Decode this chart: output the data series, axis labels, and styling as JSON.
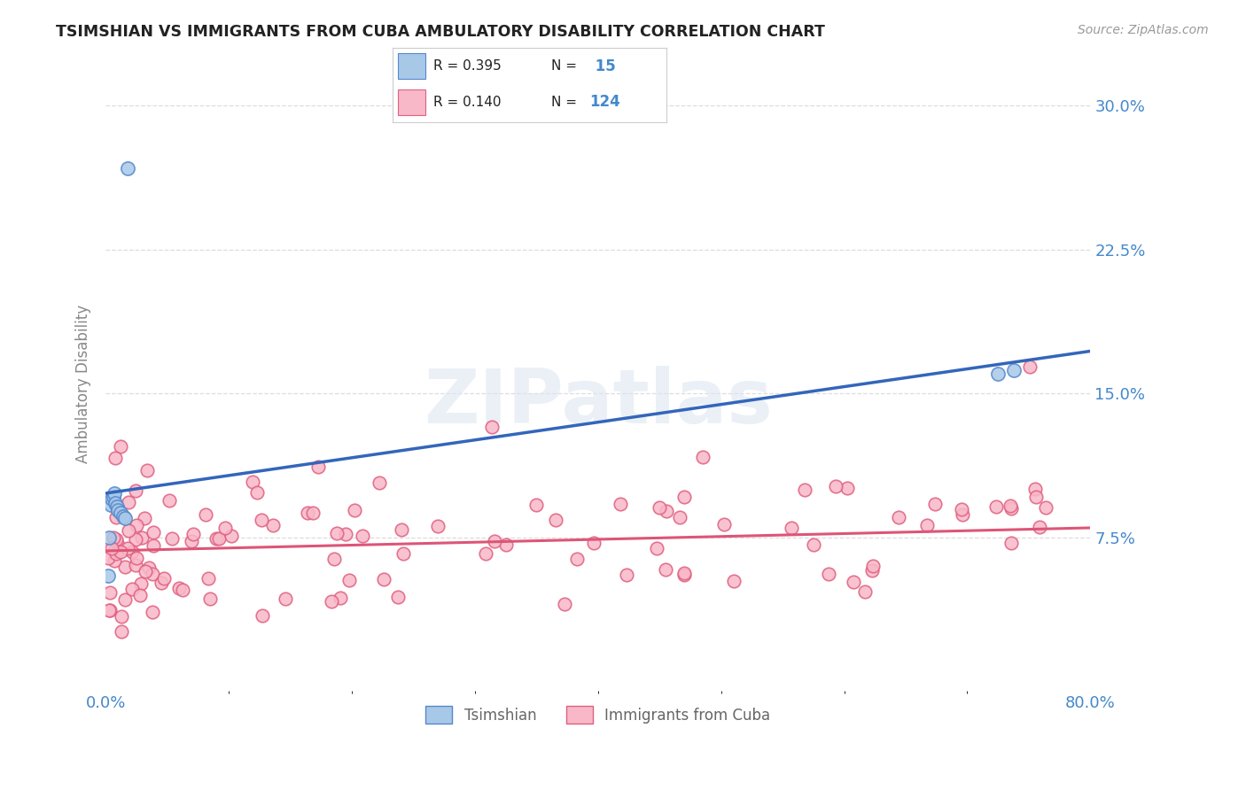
{
  "title": "TSIMSHIAN VS IMMIGRANTS FROM CUBA AMBULATORY DISABILITY CORRELATION CHART",
  "source": "Source: ZipAtlas.com",
  "ylabel": "Ambulatory Disability",
  "xmin": 0.0,
  "xmax": 0.8,
  "ymin": -0.005,
  "ymax": 0.315,
  "blue_R": "0.395",
  "blue_N": "15",
  "pink_R": "0.140",
  "pink_N": "124",
  "blue_scatter_color": "#a8c8e8",
  "blue_edge_color": "#5588cc",
  "pink_scatter_color": "#f8b8c8",
  "pink_edge_color": "#e06080",
  "blue_line_color": "#3366bb",
  "pink_line_color": "#dd5577",
  "legend_label_blue": "Tsimshian",
  "legend_label_pink": "Immigrants from Cuba",
  "blue_x": [
    0.002,
    0.003,
    0.004,
    0.005,
    0.006,
    0.007,
    0.008,
    0.009,
    0.01,
    0.012,
    0.014,
    0.016,
    0.018,
    0.725,
    0.738
  ],
  "blue_y": [
    0.055,
    0.075,
    0.092,
    0.095,
    0.096,
    0.098,
    0.093,
    0.091,
    0.089,
    0.088,
    0.086,
    0.085,
    0.267,
    0.16,
    0.162
  ],
  "blue_trend_x0": 0.0,
  "blue_trend_y0": 0.098,
  "blue_trend_x1": 0.8,
  "blue_trend_y1": 0.172,
  "pink_trend_x0": 0.0,
  "pink_trend_y0": 0.068,
  "pink_trend_x1": 0.8,
  "pink_trend_y1": 0.08,
  "watermark": "ZIPatlas",
  "background_color": "#ffffff",
  "grid_color": "#dddddd",
  "title_color": "#222222",
  "tick_color": "#4488cc",
  "label_color": "#888888"
}
